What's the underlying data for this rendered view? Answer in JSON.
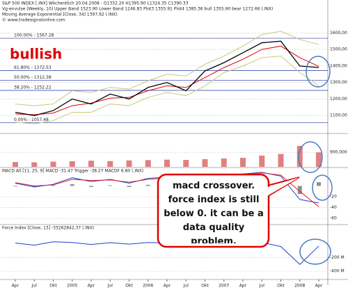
{
  "chart_data": [
    {
      "type": "line",
      "header_lines": [
        "S&P 500 INDEX [.INX] Wöchentlich 20.04.2008 - O1332.20 H1395.90 L1324.35 C1390.33",
        "Vg-envulse [Weekly, 10] Upper Band 1523.90 Lower Band 1246.83 Plot3 1355.91 Plot4 1385.36 bull 1355.90 bear 1272.66 (.INX)",
        "Moving Average Exponential [Close, 34] 1397.62 (.INX)",
        "© www.tradesignalonline.com"
      ],
      "annotations": [
        "bullish",
        "macd crossover. force index is still below 0. it can be a data quality problem."
      ],
      "categories": [
        "Apr",
        "Jul",
        "Okt",
        "2005",
        "Apr",
        "Jul",
        "Okt",
        "2006",
        "Apr",
        "Jul",
        "Okt",
        "2007",
        "Apr",
        "Jul",
        "Okt",
        "2008",
        "Apr"
      ],
      "levels": [
        {
          "value": 1567.28,
          "label": "100.00% - 1567.28"
        },
        {
          "value": 1372.53,
          "label": "61.80% - 1372.53"
        },
        {
          "value": 1312.38,
          "label": "50.00% - 1312.38"
        },
        {
          "value": 1252.22,
          "label": "38.20% - 1252.22"
        },
        {
          "value": 1057.48,
          "label": "0.00% - 1057.48"
        }
      ],
      "series": [
        {
          "color": "#c8c878",
          "values": [
            1170,
            1160,
            1170,
            1250,
            1240,
            1270,
            1260,
            1310,
            1350,
            1340,
            1410,
            1460,
            1520,
            1590,
            1610,
            1560,
            1530
          ]
        },
        {
          "color": "#c8c878",
          "values": [
            1060,
            1050,
            1070,
            1120,
            1120,
            1170,
            1160,
            1210,
            1240,
            1220,
            1280,
            1360,
            1400,
            1450,
            1460,
            1360,
            1280
          ]
        },
        {
          "color": "#e00000",
          "values": [
            1110,
            1105,
            1115,
            1160,
            1175,
            1205,
            1210,
            1250,
            1280,
            1270,
            1330,
            1390,
            1440,
            1500,
            1520,
            1450,
            1397.62
          ]
        },
        {
          "color": "#000000",
          "values": [
            1120,
            1100,
            1130,
            1200,
            1170,
            1230,
            1200,
            1270,
            1300,
            1250,
            1370,
            1420,
            1480,
            1540,
            1550,
            1400,
            1390.33
          ]
        }
      ],
      "ylim": [
        1000,
        1740
      ],
      "yticks": [
        {
          "value": 1100,
          "label": "1100,00"
        },
        {
          "value": 1200,
          "label": "1200,00"
        },
        {
          "value": 1300,
          "label": "1300,00"
        },
        {
          "value": 1400,
          "label": "1400,00"
        },
        {
          "value": 1500,
          "label": "1500,00"
        },
        {
          "value": 1600,
          "label": "1600,00"
        }
      ],
      "grid": true
    },
    {
      "type": "bar",
      "color": "#e08080",
      "values": [
        300000,
        280000,
        320000,
        350000,
        380000,
        360000,
        400000,
        420000,
        450000,
        430000,
        480000,
        520000,
        560000,
        700000,
        800000,
        1300000,
        900000
      ],
      "ylim": [
        0,
        1900000
      ],
      "yticks": [
        {
          "value": 900000,
          "label": "900,000"
        }
      ],
      "grid": true
    },
    {
      "type": "line",
      "title": "MACD All [11, 25, 9] MACD -31.47 Trigger -38.27 MACDF 6.80 (.INX)",
      "histogram": {
        "color": "#909090",
        "values": [
          -1,
          -2,
          1,
          3,
          -2,
          1,
          -2,
          2,
          1,
          -3,
          3,
          -1,
          1,
          1,
          -2,
          -15,
          6.8
        ]
      },
      "series": [
        {
          "color": "#2040d0",
          "values": [
            5,
            -2,
            3,
            15,
            8,
            12,
            5,
            14,
            16,
            6,
            20,
            18,
            22,
            25,
            18,
            -25,
            -31.47
          ]
        },
        {
          "color": "#e02020",
          "values": [
            6,
            0,
            2,
            12,
            10,
            11,
            7,
            12,
            15,
            9,
            17,
            19,
            21,
            24,
            20,
            -10,
            -38.27
          ]
        }
      ],
      "ylim": [
        -70,
        30
      ],
      "yticks": [
        -20,
        -40,
        -60
      ],
      "grid": true
    },
    {
      "type": "line",
      "title": "Force Index [Close, 13] -33262842.37 (.INX)",
      "series": [
        {
          "color": "#2040d0",
          "values": [
            10000000,
            -20000000,
            30000000,
            20000000,
            -10000000,
            15000000,
            -5000000,
            20000000,
            10000000,
            -30000000,
            25000000,
            15000000,
            10000000,
            20000000,
            -40000000,
            -300000000,
            -33262842.37
          ]
        }
      ],
      "ylim": [
        -500000000,
        250000000
      ],
      "yticks": [
        {
          "value": -200000000,
          "label": "-200 M"
        },
        {
          "value": -400000000,
          "label": "-400 M"
        }
      ],
      "grid": true
    }
  ]
}
